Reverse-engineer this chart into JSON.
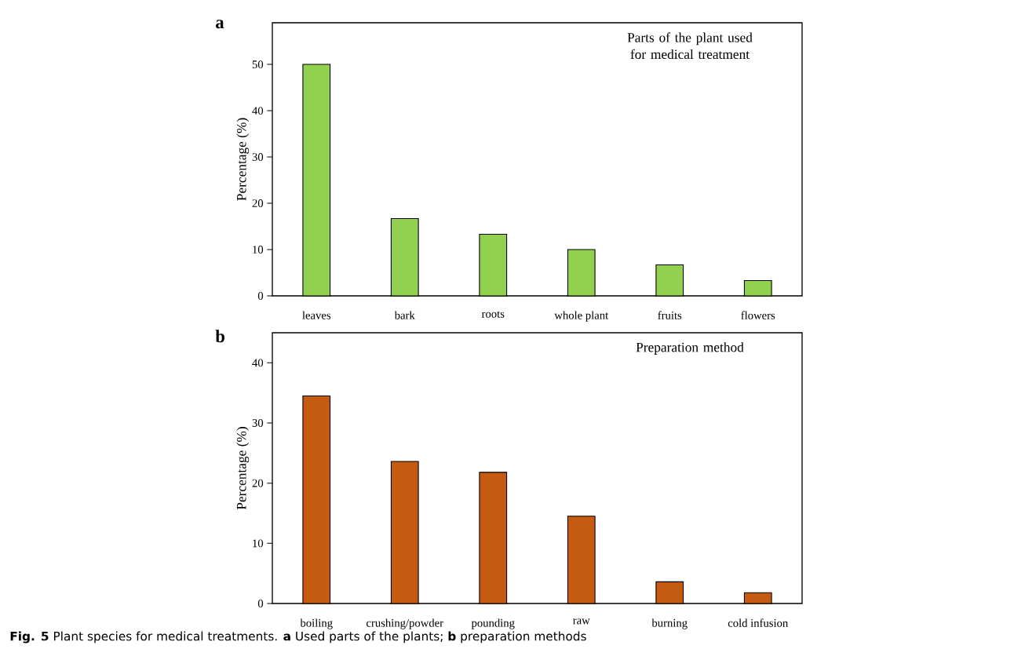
{
  "chart_data": [
    {
      "type": "bar",
      "title": "Parts of the plant used for medical treatment",
      "categories": [
        "leaves",
        "bark",
        "roots",
        "whole plant",
        "fruits",
        "flowers"
      ],
      "values": [
        50,
        16.7,
        13.3,
        10,
        6.7,
        3.3
      ],
      "color": "#92d050",
      "ylabel": "Percentage (%)",
      "ylim": [
        0,
        59
      ],
      "yticks": [
        0,
        10,
        20,
        30,
        40,
        50
      ],
      "annotations": [
        "a"
      ]
    },
    {
      "type": "bar",
      "title": "Preparation method",
      "categories": [
        "boiling",
        "crushing/powder",
        "pounding",
        "raw",
        "burning",
        "cold infusion"
      ],
      "values": [
        34.5,
        23.6,
        21.8,
        14.5,
        3.6,
        1.8
      ],
      "color": "#c55a11",
      "ylabel": "Percentage (%)",
      "ylim": [
        0,
        45
      ],
      "yticks": [
        0,
        10,
        20,
        30,
        40
      ],
      "annotations": [
        "b",
        "**Fig. 5** Plant species for medical treatments. **a** Used parts of the plants; **b** preparation methods"
      ]
    }
  ]
}
